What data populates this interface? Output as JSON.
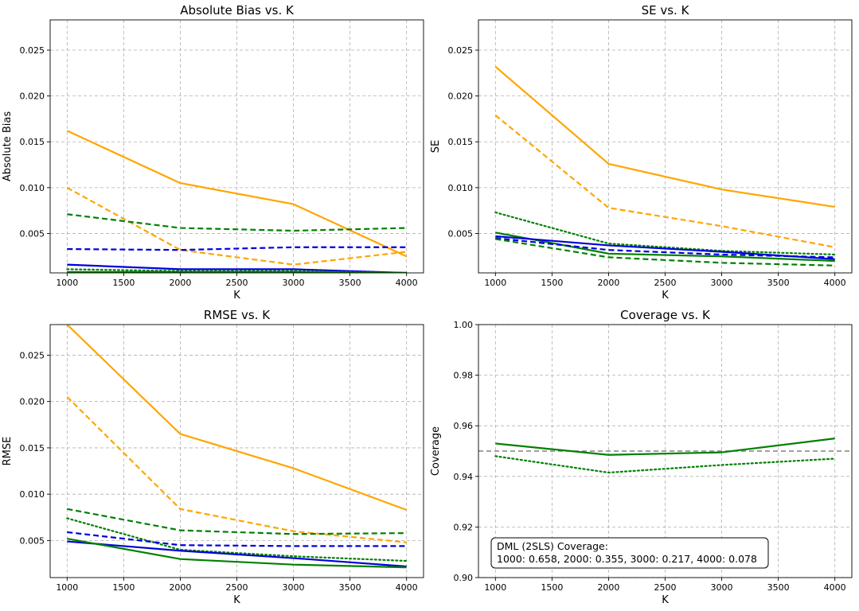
{
  "figure": {
    "colors": {
      "orange": "#ffa500",
      "blue": "#0000dd",
      "green": "#008000",
      "grid": "#b0b0b0",
      "refline": "#808080"
    }
  },
  "chart_data": [
    {
      "type": "line",
      "title": "Absolute Bias vs. K",
      "xlabel": "K",
      "ylabel": "Absolute Bias",
      "xlim": [
        850,
        4150
      ],
      "ylim": [
        0.0007,
        0.0283
      ],
      "xticks": [
        1000,
        1500,
        2000,
        2500,
        3000,
        3500,
        4000
      ],
      "yticks": [
        0.005,
        0.01,
        0.015,
        0.02,
        0.025
      ],
      "ytick_labels": [
        "0.005",
        "0.010",
        "0.015",
        "0.020",
        "0.025"
      ],
      "grid": true,
      "x": [
        1000,
        2000,
        3000,
        4000
      ],
      "series": [
        {
          "name": "orange-solid",
          "color": "orange",
          "style": "solid",
          "values": [
            0.0162,
            0.0105,
            0.0082,
            0.0025
          ]
        },
        {
          "name": "orange-dashed",
          "color": "orange",
          "style": "dashed",
          "values": [
            0.01,
            0.0032,
            0.0016,
            0.003
          ]
        },
        {
          "name": "green-dashed",
          "color": "green",
          "style": "dashed",
          "values": [
            0.0071,
            0.0056,
            0.0053,
            0.0056
          ]
        },
        {
          "name": "blue-dashed",
          "color": "blue",
          "style": "dashed",
          "values": [
            0.0033,
            0.0032,
            0.0035,
            0.0035
          ]
        },
        {
          "name": "blue-solid",
          "color": "blue",
          "style": "solid",
          "values": [
            0.0016,
            0.0011,
            0.0011,
            0.0007
          ]
        },
        {
          "name": "green-dotted",
          "color": "green",
          "style": "dotted",
          "values": [
            0.0011,
            0.0009,
            0.0009,
            0.0007
          ]
        },
        {
          "name": "green-solid",
          "color": "green",
          "style": "solid",
          "values": [
            0.0008,
            0.0008,
            0.0008,
            0.0007
          ]
        }
      ]
    },
    {
      "type": "line",
      "title": "SE vs. K",
      "xlabel": "K",
      "ylabel": "SE",
      "xlim": [
        850,
        4150
      ],
      "ylim": [
        0.0007,
        0.0283
      ],
      "xticks": [
        1000,
        1500,
        2000,
        2500,
        3000,
        3500,
        4000
      ],
      "yticks": [
        0.005,
        0.01,
        0.015,
        0.02,
        0.025
      ],
      "ytick_labels": [
        "0.005",
        "0.010",
        "0.015",
        "0.020",
        "0.025"
      ],
      "grid": true,
      "x": [
        1000,
        2000,
        3000,
        4000
      ],
      "series": [
        {
          "name": "orange-solid",
          "color": "orange",
          "style": "solid",
          "values": [
            0.0232,
            0.0126,
            0.0098,
            0.0079
          ]
        },
        {
          "name": "orange-dashed",
          "color": "orange",
          "style": "dashed",
          "values": [
            0.0179,
            0.0078,
            0.0058,
            0.0035
          ]
        },
        {
          "name": "green-dotted",
          "color": "green",
          "style": "dotted",
          "values": [
            0.0073,
            0.0039,
            0.0031,
            0.0027
          ]
        },
        {
          "name": "green-solid",
          "color": "green",
          "style": "solid",
          "values": [
            0.0051,
            0.0028,
            0.0025,
            0.002
          ]
        },
        {
          "name": "blue-solid",
          "color": "blue",
          "style": "solid",
          "values": [
            0.0047,
            0.0037,
            0.003,
            0.0022
          ]
        },
        {
          "name": "blue-dashed",
          "color": "blue",
          "style": "dashed",
          "values": [
            0.0045,
            0.0032,
            0.0027,
            0.0024
          ]
        },
        {
          "name": "green-dashed",
          "color": "green",
          "style": "dashed",
          "values": [
            0.0044,
            0.0024,
            0.0018,
            0.0015
          ]
        }
      ]
    },
    {
      "type": "line",
      "title": "RMSE vs. K",
      "xlabel": "K",
      "ylabel": "RMSE",
      "xlim": [
        850,
        4150
      ],
      "ylim": [
        0.001,
        0.0283
      ],
      "xticks": [
        1000,
        1500,
        2000,
        2500,
        3000,
        3500,
        4000
      ],
      "yticks": [
        0.005,
        0.01,
        0.015,
        0.02,
        0.025
      ],
      "ytick_labels": [
        "0.005",
        "0.010",
        "0.015",
        "0.020",
        "0.025"
      ],
      "grid": true,
      "x": [
        1000,
        2000,
        3000,
        4000
      ],
      "series": [
        {
          "name": "orange-solid",
          "color": "orange",
          "style": "solid",
          "values": [
            0.0283,
            0.0165,
            0.0128,
            0.0083
          ]
        },
        {
          "name": "orange-dashed",
          "color": "orange",
          "style": "dashed",
          "values": [
            0.0205,
            0.0084,
            0.006,
            0.0048
          ]
        },
        {
          "name": "green-dashed",
          "color": "green",
          "style": "dashed",
          "values": [
            0.0084,
            0.0061,
            0.0057,
            0.0058
          ]
        },
        {
          "name": "green-dotted",
          "color": "green",
          "style": "dotted",
          "values": [
            0.0074,
            0.004,
            0.0033,
            0.0028
          ]
        },
        {
          "name": "blue-dashed",
          "color": "blue",
          "style": "dashed",
          "values": [
            0.0059,
            0.0045,
            0.0044,
            0.0044
          ]
        },
        {
          "name": "blue-solid",
          "color": "blue",
          "style": "solid",
          "values": [
            0.0049,
            0.0039,
            0.0031,
            0.0022
          ]
        },
        {
          "name": "green-solid",
          "color": "green",
          "style": "solid",
          "values": [
            0.0052,
            0.003,
            0.0024,
            0.0021
          ]
        }
      ]
    },
    {
      "type": "line",
      "title": "Coverage vs. K",
      "xlabel": "K",
      "ylabel": "Coverage",
      "xlim": [
        850,
        4150
      ],
      "ylim": [
        0.9,
        1.0
      ],
      "xticks": [
        1000,
        1500,
        2000,
        2500,
        3000,
        3500,
        4000
      ],
      "yticks": [
        0.9,
        0.92,
        0.94,
        0.96,
        0.98,
        1.0
      ],
      "ytick_labels": [
        "0.90",
        "0.92",
        "0.94",
        "0.96",
        "0.98",
        "1.00"
      ],
      "grid": true,
      "reference_line": {
        "y": 0.95,
        "color": "refline",
        "style": "dashed"
      },
      "x": [
        1000,
        2000,
        3000,
        4000
      ],
      "series": [
        {
          "name": "green-solid",
          "color": "green",
          "style": "solid",
          "values": [
            0.953,
            0.9485,
            0.9495,
            0.955
          ]
        },
        {
          "name": "green-dotted",
          "color": "green",
          "style": "dotted",
          "values": [
            0.948,
            0.9415,
            0.9445,
            0.947
          ]
        }
      ],
      "annotation": {
        "line1": "DML (2SLS) Coverage:",
        "line2": "1000: 0.658, 2000: 0.355, 3000: 0.217, 4000: 0.078"
      }
    }
  ]
}
